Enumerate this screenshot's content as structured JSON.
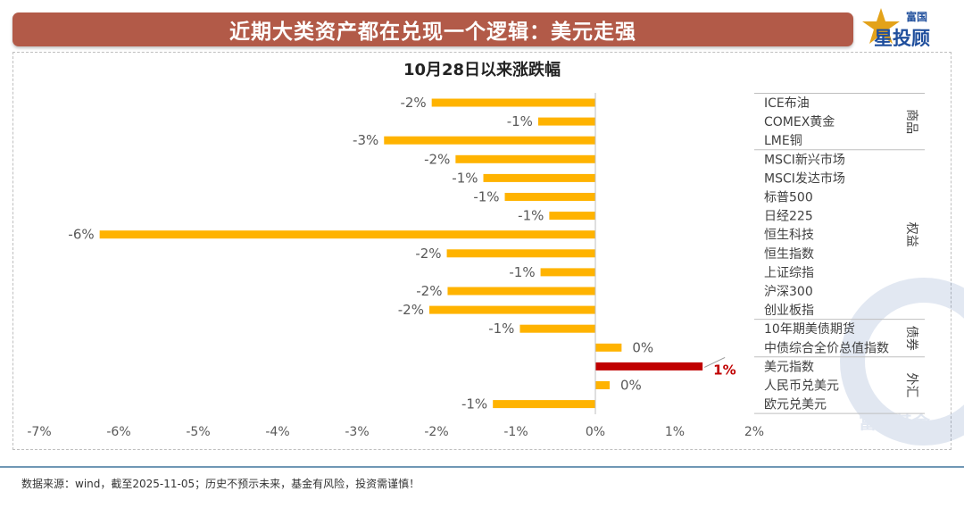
{
  "header": {
    "title": "近期大类资产都在兑现一个逻辑：美元走强",
    "logo_top": "富国",
    "logo_main": "星投顾"
  },
  "watermark": "富国基金",
  "footer": {
    "note": "数据来源：wind，截至2025-11-05；历史不预示未来，基金有风险，投资需谨慎！"
  },
  "colors": {
    "banner": "#b25a48",
    "bar": "#ffb300",
    "highlight": "#c00000",
    "logo_gold": "#e3a21a",
    "logo_blue": "#1f4e9c"
  },
  "chart_data": {
    "type": "bar",
    "orientation": "horizontal",
    "title": "10月28日以来涨跌幅",
    "xlim": [
      -0.07,
      0.02
    ],
    "x_ticks": [
      "-7%",
      "-6%",
      "-5%",
      "-4%",
      "-3%",
      "-2%",
      "-1%",
      "0%",
      "1%",
      "2%"
    ],
    "grid": false,
    "categories": [
      "ICE布油",
      "COMEX黄金",
      "LME铜",
      "MSCI新兴市场",
      "MSCI发达市场",
      "标普500",
      "日经225",
      "恒生科技",
      "恒生指数",
      "上证综指",
      "沪深300",
      "创业板指",
      "10年期美债期货",
      "中债综合全价总值指数",
      "美元指数",
      "人民币兑美元",
      "欧元兑美元"
    ],
    "values": [
      -0.0206,
      -0.0072,
      -0.0266,
      -0.0176,
      -0.0141,
      -0.0114,
      -0.0058,
      -0.0624,
      -0.0187,
      -0.0069,
      -0.0186,
      -0.0209,
      -0.0095,
      0.0033,
      0.0135,
      0.0018,
      -0.0129
    ],
    "data_labels": [
      "-2%",
      "-1%",
      "-3%",
      "-2%",
      "-1%",
      "-1%",
      "-1%",
      "-6%",
      "-2%",
      "-1%",
      "-2%",
      "-2%",
      "-1%",
      "0%",
      "1%",
      "0%",
      "-1%"
    ],
    "highlight_index": 14,
    "groups": [
      {
        "name": "商品",
        "start": 0,
        "end": 2
      },
      {
        "name": "权益",
        "start": 3,
        "end": 11
      },
      {
        "name": "债券",
        "start": 12,
        "end": 13
      },
      {
        "name": "外汇",
        "start": 14,
        "end": 16
      }
    ]
  }
}
